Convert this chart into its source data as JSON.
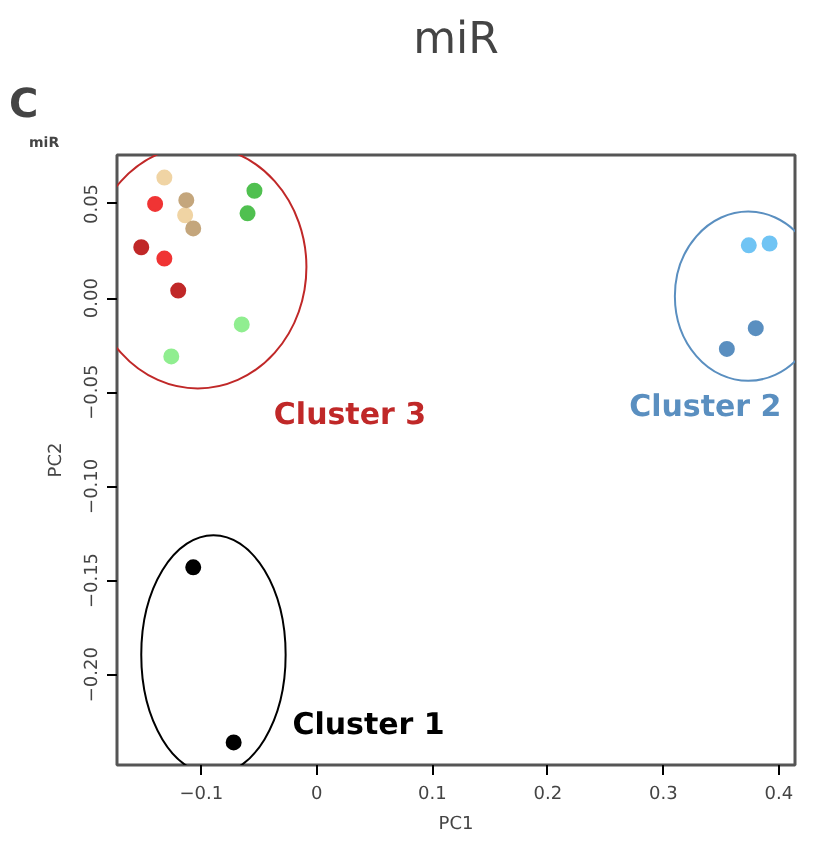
{
  "chart_data": {
    "type": "scatter",
    "title": "miR",
    "xlabel": "PC1",
    "ylabel": "PC2",
    "xlim": [
      -0.173,
      0.414
    ],
    "ylim": [
      -0.248,
      0.076
    ],
    "xticks": [
      {
        "value": -0.1,
        "label": "−0.1"
      },
      0.0,
      0.1,
      0.2,
      0.3,
      0.4
    ],
    "yticks": [
      {
        "value": -0.2,
        "label": "−0.20"
      },
      {
        "value": -0.15,
        "label": "−0.15"
      },
      {
        "value": -0.1,
        "label": "−0.10"
      },
      {
        "value": -0.05,
        "label": "−0.05"
      },
      {
        "value": 0.0,
        "label": "0.00"
      },
      0.05
    ],
    "grid": false,
    "marker": "circle",
    "series": [
      {
        "color": "#f0d4a4",
        "x": [
          -0.132,
          -0.114
        ],
        "values": [
          0.064,
          0.044
        ]
      },
      {
        "color": "#c4a67c",
        "x": [
          -0.113,
          -0.107
        ],
        "values": [
          0.052,
          0.037
        ]
      },
      {
        "color": "#f03434",
        "x": [
          -0.14,
          -0.132
        ],
        "values": [
          0.05,
          0.021
        ]
      },
      {
        "color": "#c02828",
        "x": [
          -0.152,
          -0.12
        ],
        "values": [
          0.027,
          0.004
        ]
      },
      {
        "color": "#50c050",
        "x": [
          -0.054,
          -0.06
        ],
        "values": [
          0.057,
          0.045
        ]
      },
      {
        "color": "#90ee90",
        "x": [
          -0.065,
          -0.126
        ],
        "values": [
          -0.014,
          -0.031
        ]
      },
      {
        "color": "#70c4f4",
        "x": [
          0.374,
          0.392
        ],
        "values": [
          0.028,
          0.029
        ]
      },
      {
        "color": "#5a8fc0",
        "x": [
          0.38,
          0.355
        ],
        "values": [
          -0.016,
          -0.027
        ]
      },
      {
        "color": "#000000",
        "x": [
          -0.107,
          -0.072
        ],
        "values": [
          -0.143,
          -0.236
        ]
      }
    ],
    "annotations": [
      "C",
      "miR",
      "Cluster 3",
      "Cluster 2",
      "Cluster 1"
    ]
  }
}
